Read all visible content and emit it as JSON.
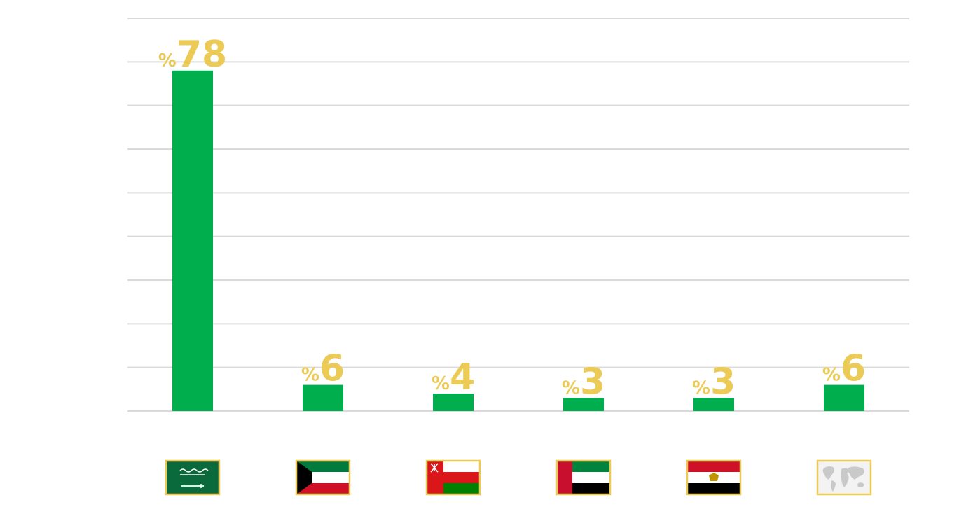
{
  "chart_data": {
    "type": "bar",
    "categories": [
      "Saudi Arabia",
      "Kuwait",
      "Oman",
      "United Arab Emirates",
      "Egypt",
      "World"
    ],
    "category_icons": [
      "saudi-arabia-flag",
      "kuwait-flag",
      "oman-flag",
      "uae-flag",
      "egypt-flag",
      "world-map"
    ],
    "values": [
      78,
      6,
      4,
      3,
      3,
      6
    ],
    "value_labels": [
      "%78",
      "%6",
      "%4",
      "%3",
      "%3",
      "%6"
    ],
    "ylim": [
      0,
      90
    ],
    "grid": true,
    "bar_color": "#00AE4E",
    "label_color": "#EBCB55",
    "grid_color": "#DADADA",
    "flag_border_color": "#EBCB55",
    "title": "",
    "xlabel": "",
    "ylabel": ""
  }
}
